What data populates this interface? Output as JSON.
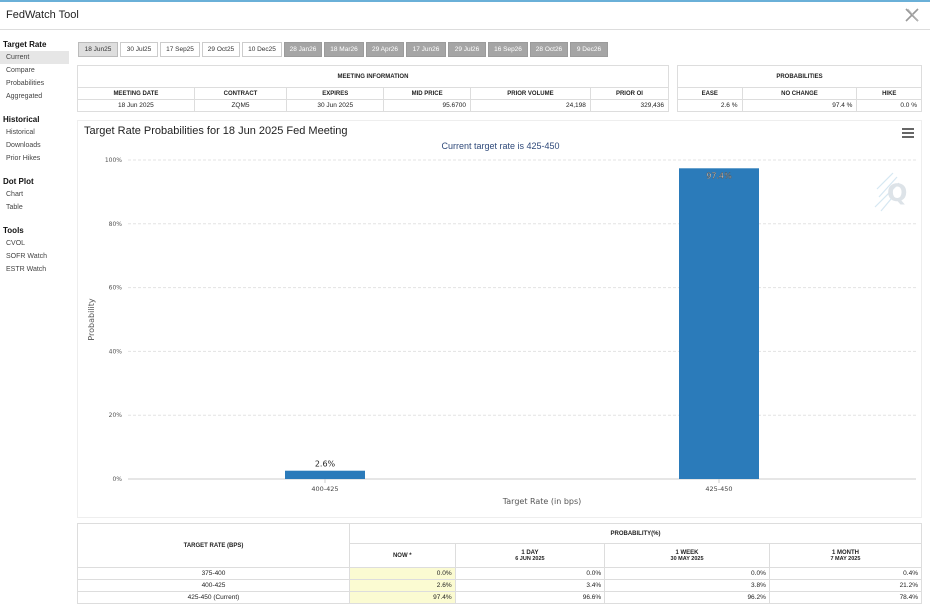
{
  "app": {
    "title": "FedWatch Tool"
  },
  "sidebar": {
    "groups": [
      {
        "heading": "Target Rate",
        "items": [
          "Current",
          "Compare",
          "Probabilities",
          "Aggregated"
        ]
      },
      {
        "heading": "Historical",
        "items": [
          "Historical",
          "Downloads",
          "Prior Hikes"
        ]
      },
      {
        "heading": "Dot Plot",
        "items": [
          "Chart",
          "Table"
        ]
      },
      {
        "heading": "Tools",
        "items": [
          "CVOL",
          "SOFR Watch",
          "ESTR Watch"
        ]
      }
    ],
    "active": "Current"
  },
  "tabs": [
    {
      "label": "18 Jun25",
      "state": "active"
    },
    {
      "label": "30 Jul25",
      "state": "normal"
    },
    {
      "label": "17 Sep25",
      "state": "normal"
    },
    {
      "label": "29 Oct25",
      "state": "normal"
    },
    {
      "label": "10 Dec25",
      "state": "normal"
    },
    {
      "label": "28 Jan26",
      "state": "gray"
    },
    {
      "label": "18 Mar26",
      "state": "gray"
    },
    {
      "label": "29 Apr26",
      "state": "gray"
    },
    {
      "label": "17 Jun26",
      "state": "gray"
    },
    {
      "label": "29 Jul26",
      "state": "gray"
    },
    {
      "label": "16 Sep26",
      "state": "gray"
    },
    {
      "label": "28 Oct26",
      "state": "gray"
    },
    {
      "label": "9 Dec26",
      "state": "gray"
    }
  ],
  "meeting_info": {
    "caption": "MEETING INFORMATION",
    "headers": [
      "MEETING DATE",
      "CONTRACT",
      "EXPIRES",
      "MID PRICE",
      "PRIOR VOLUME",
      "PRIOR OI"
    ],
    "row": [
      "18 Jun 2025",
      "ZQM5",
      "30 Jun 2025",
      "95.6700",
      "24,198",
      "329,436"
    ]
  },
  "probabilities": {
    "caption": "PROBABILITIES",
    "headers": [
      "EASE",
      "NO CHANGE",
      "HIKE"
    ],
    "row": [
      "2.6 %",
      "97.4 %",
      "0.0 %"
    ]
  },
  "chart": {
    "title": "Target Rate Probabilities for 18 Jun 2025 Fed Meeting",
    "subtitle": "Current target rate is 425-450",
    "watermark_icon": "q-logo-icon",
    "bar_color": "#2b7bba"
  },
  "chart_data": {
    "type": "bar",
    "categories": [
      "400-425",
      "425-450"
    ],
    "values": [
      2.6,
      97.4
    ],
    "data_labels": [
      "2.6%",
      "97.4%"
    ],
    "title": "Target Rate Probabilities for 18 Jun 2025 Fed Meeting",
    "subtitle": "Current target rate is 425-450",
    "xlabel": "Target Rate (in bps)",
    "ylabel": "Probability",
    "ylim": [
      0,
      100
    ],
    "yticks": [
      0,
      20,
      40,
      60,
      80,
      100
    ],
    "ytick_labels": [
      "0%",
      "20%",
      "40%",
      "60%",
      "80%",
      "100%"
    ],
    "grid": true,
    "legend": "none"
  },
  "bottom_table": {
    "col_header_rate": "TARGET RATE (BPS)",
    "col_header_prob": "PROBABILITY(%)",
    "sub_headers": [
      {
        "line1": "NOW *",
        "line2": ""
      },
      {
        "line1": "1 DAY",
        "line2": "6 JUN 2025"
      },
      {
        "line1": "1 WEEK",
        "line2": "30 MAY 2025"
      },
      {
        "line1": "1 MONTH",
        "line2": "7 MAY 2025"
      }
    ],
    "rows": [
      [
        "375-400",
        "0.0%",
        "0.0%",
        "0.0%",
        "0.4%"
      ],
      [
        "400-425",
        "2.6%",
        "3.4%",
        "3.8%",
        "21.2%"
      ],
      [
        "425-450 (Current)",
        "97.4%",
        "96.6%",
        "96.2%",
        "78.4%"
      ]
    ]
  }
}
